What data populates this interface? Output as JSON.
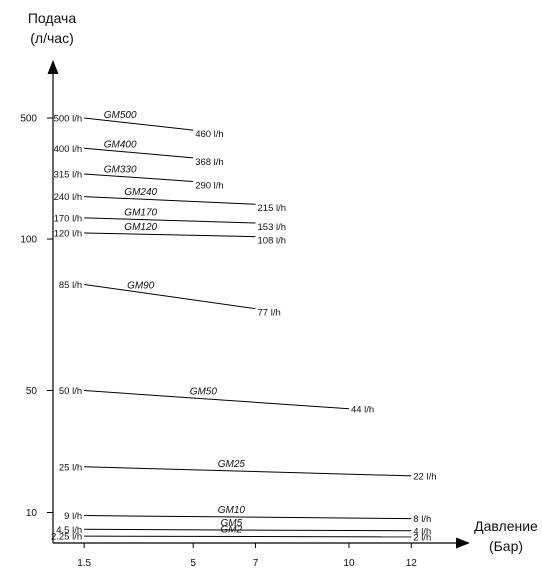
{
  "chart_data": {
    "type": "line",
    "title": "",
    "ylabel": {
      "line1": "Подача",
      "line2": "(л/час)"
    },
    "xlabel": {
      "line1": "Давление",
      "line2": "(Бар)"
    },
    "x_ticks": [
      "1.5",
      "5",
      "7",
      "10",
      "12"
    ],
    "x_tick_values": [
      1.5,
      5,
      7,
      10,
      12
    ],
    "y_ticks": [
      "500",
      "100",
      "50",
      "10"
    ],
    "y_tick_values": [
      500,
      100,
      50,
      10
    ],
    "xlim": [
      0.5,
      13.5
    ],
    "series": [
      {
        "name": "GM500",
        "x": [
          1.5,
          5
        ],
        "y": [
          500,
          460
        ],
        "start_label": "500 l/h",
        "end_label": "460 l/h"
      },
      {
        "name": "GM400",
        "x": [
          1.5,
          5
        ],
        "y": [
          400,
          368
        ],
        "start_label": "400 l/h",
        "end_label": "368 l/h"
      },
      {
        "name": "GM330",
        "x": [
          1.5,
          5
        ],
        "y": [
          315,
          290
        ],
        "start_label": "315 l/h",
        "end_label": "290 l/h"
      },
      {
        "name": "GM240",
        "x": [
          1.5,
          7
        ],
        "y": [
          240,
          215
        ],
        "start_label": "240 l/h",
        "end_label": "215 l/h"
      },
      {
        "name": "GM170",
        "x": [
          1.5,
          7
        ],
        "y": [
          170,
          153
        ],
        "start_label": "170 l/h",
        "end_label": "153 l/h"
      },
      {
        "name": "GM120",
        "x": [
          1.5,
          7
        ],
        "y": [
          120,
          108
        ],
        "start_label": "120 l/h",
        "end_label": "108 l/h"
      },
      {
        "name": "GM90",
        "x": [
          1.5,
          7
        ],
        "y": [
          85,
          77
        ],
        "start_label": "85 l/h",
        "end_label": "77 l/h"
      },
      {
        "name": "GM50",
        "x": [
          1.5,
          10
        ],
        "y": [
          50,
          44
        ],
        "start_label": "50 l/h",
        "end_label": "44 l/h"
      },
      {
        "name": "GM25",
        "x": [
          1.5,
          12
        ],
        "y": [
          25,
          22
        ],
        "start_label": "25 l/h",
        "end_label": "22 l/h"
      },
      {
        "name": "GM10",
        "x": [
          1.5,
          12
        ],
        "y": [
          9,
          8
        ],
        "start_label": "9 l/h",
        "end_label": "8 l/h"
      },
      {
        "name": "GM5",
        "x": [
          1.5,
          12
        ],
        "y": [
          4.5,
          4
        ],
        "start_label": "4.5 l/h",
        "end_label": "4 l/h"
      },
      {
        "name": "GM2",
        "x": [
          1.5,
          12
        ],
        "y": [
          2.25,
          2
        ],
        "start_label": "2.25 l/h",
        "end_label": "2 l/h"
      }
    ]
  }
}
